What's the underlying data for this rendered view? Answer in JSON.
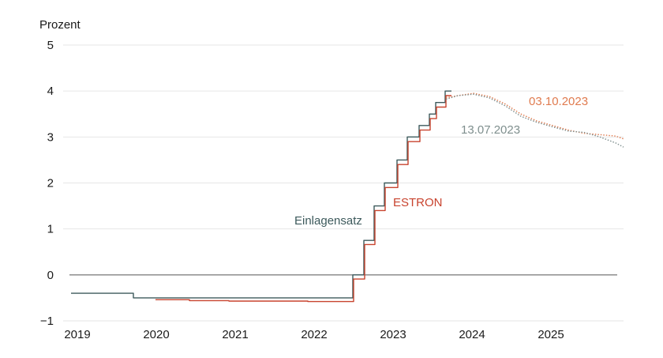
{
  "chart_data": {
    "type": "line",
    "unit_label": "Prozent",
    "y_ticks": [
      "5",
      "4",
      "3",
      "2",
      "1",
      "0",
      "−1"
    ],
    "y_values": [
      5,
      4,
      3,
      2,
      1,
      0,
      -1
    ],
    "x_ticks": [
      "2019",
      "2020",
      "2021",
      "2022",
      "2023",
      "2024",
      "2025"
    ],
    "x_values": [
      2019,
      2020,
      2021,
      2022,
      2023,
      2024,
      2025
    ],
    "xlim": [
      2019,
      2026
    ],
    "ylim": [
      -1,
      5
    ],
    "grid": true,
    "colors": {
      "einlagensatz": "#3d5a5c",
      "estron": "#c8432e",
      "fwd_2023_10_03": "#e07b4f",
      "fwd_2023_07_13": "#7f8f8e",
      "grid": "#e6e6e6",
      "zero": "#555555"
    },
    "annotations": {
      "einlagensatz": "Einlagensatz",
      "estron": "ESTRON",
      "fwd_2023_10_03": "03.10.2023",
      "fwd_2023_07_13": "13.07.2023"
    },
    "series": [
      {
        "name": "Einlagensatz",
        "step": true,
        "points": [
          [
            2019.0,
            -0.4
          ],
          [
            2019.79,
            -0.5
          ],
          [
            2022.57,
            0.0
          ],
          [
            2022.71,
            0.75
          ],
          [
            2022.84,
            1.5
          ],
          [
            2022.97,
            2.0
          ],
          [
            2023.13,
            2.5
          ],
          [
            2023.26,
            3.0
          ],
          [
            2023.41,
            3.25
          ],
          [
            2023.54,
            3.5
          ],
          [
            2023.62,
            3.75
          ],
          [
            2023.74,
            4.0
          ],
          [
            2023.82,
            4.0
          ]
        ]
      },
      {
        "name": "ESTRON",
        "step": true,
        "points": [
          [
            2020.07,
            -0.54
          ],
          [
            2020.5,
            -0.56
          ],
          [
            2021.0,
            -0.57
          ],
          [
            2021.5,
            -0.57
          ],
          [
            2022.0,
            -0.58
          ],
          [
            2022.55,
            -0.58
          ],
          [
            2022.58,
            -0.09
          ],
          [
            2022.72,
            0.66
          ],
          [
            2022.85,
            1.4
          ],
          [
            2022.98,
            1.9
          ],
          [
            2023.14,
            2.4
          ],
          [
            2023.27,
            2.9
          ],
          [
            2023.42,
            3.15
          ],
          [
            2023.55,
            3.4
          ],
          [
            2023.63,
            3.65
          ],
          [
            2023.75,
            3.9
          ],
          [
            2023.82,
            3.9
          ]
        ]
      },
      {
        "name": "03.10.2023",
        "points": [
          [
            2023.75,
            3.85
          ],
          [
            2023.9,
            3.9
          ],
          [
            2024.1,
            3.95
          ],
          [
            2024.3,
            3.88
          ],
          [
            2024.5,
            3.72
          ],
          [
            2024.7,
            3.5
          ],
          [
            2024.9,
            3.35
          ],
          [
            2025.1,
            3.25
          ],
          [
            2025.3,
            3.15
          ],
          [
            2025.5,
            3.08
          ],
          [
            2025.7,
            3.05
          ],
          [
            2025.9,
            3.02
          ],
          [
            2026.0,
            2.96
          ]
        ]
      },
      {
        "name": "13.07.2023",
        "points": [
          [
            2023.75,
            3.82
          ],
          [
            2023.9,
            3.9
          ],
          [
            2024.1,
            3.93
          ],
          [
            2024.3,
            3.85
          ],
          [
            2024.5,
            3.68
          ],
          [
            2024.7,
            3.45
          ],
          [
            2024.9,
            3.32
          ],
          [
            2025.1,
            3.22
          ],
          [
            2025.3,
            3.13
          ],
          [
            2025.5,
            3.1
          ],
          [
            2025.7,
            3.0
          ],
          [
            2025.9,
            2.87
          ],
          [
            2026.0,
            2.78
          ]
        ]
      }
    ]
  }
}
